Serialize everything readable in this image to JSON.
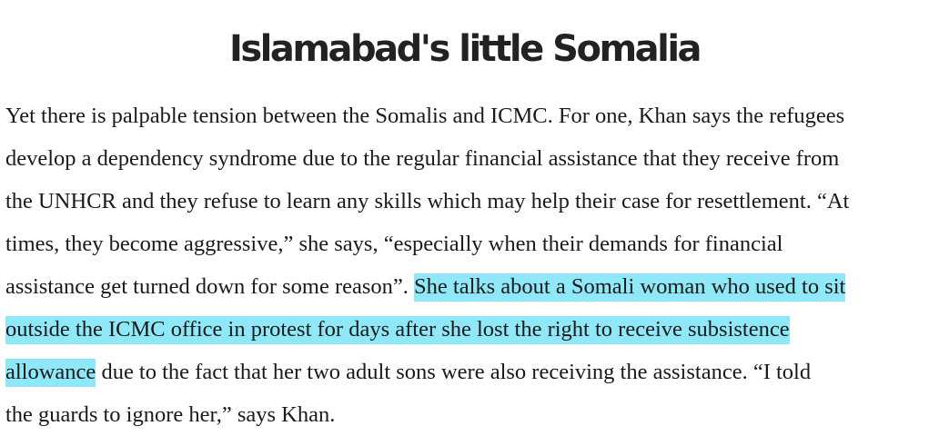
{
  "headline": "Islamabad's little Somalia",
  "highlight_color": "#8ee8f8",
  "paragraph": {
    "line1": "Yet there is palpable tension between the Somalis and ICMC. For one, Khan says the refugees",
    "line2": "develop a dependency syndrome due to the regular financial assistance that they receive from",
    "line3": "the UNHCR and they refuse to learn any skills which may help their case for resettlement. “At",
    "line4": "times, they become aggressive,” she says, “especially when their demands for financial",
    "line5_plain": "assistance get turned down for some reason”. ",
    "line5_highlight": "She talks about a Somali woman who used to sit",
    "line6_highlight": "outside the ICMC office in protest for days after she lost the right to receive subsistence",
    "line7_highlight": "allowance",
    "line7_plain": " due to the fact that her two adult sons were also receiving the assistance. “I told",
    "line8": "the guards to ignore her,” says Khan."
  }
}
